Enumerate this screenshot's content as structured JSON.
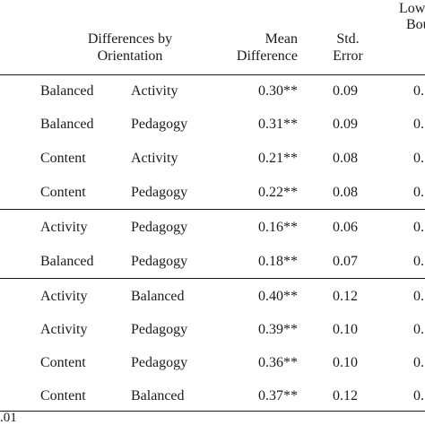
{
  "header": {
    "group_label_line1": "Differences by",
    "group_label_line2": "Orientation",
    "mean_line1": "Mean",
    "mean_line2": "Difference",
    "se_line1": "Std.",
    "se_line2": "Error",
    "lower_line1": "Low",
    "lower_line2": "Bou"
  },
  "rows": [
    {
      "a": "Balanced",
      "b": "Activity",
      "mean": "0.30**",
      "se": "0.09",
      "lb": "0."
    },
    {
      "a": "Balanced",
      "b": "Pedagogy",
      "mean": "0.31**",
      "se": "0.09",
      "lb": "0."
    },
    {
      "a": "Content",
      "b": "Activity",
      "mean": "0.21**",
      "se": "0.08",
      "lb": "0."
    },
    {
      "a": "Content",
      "b": "Pedagogy",
      "mean": "0.22**",
      "se": "0.08",
      "lb": "0."
    },
    {
      "a": "Activity",
      "b": "Pedagogy",
      "mean": "0.16**",
      "se": "0.06",
      "lb": "0."
    },
    {
      "a": "Balanced",
      "b": "Pedagogy",
      "mean": "0.18**",
      "se": "0.07",
      "lb": "0."
    },
    {
      "a": "Activity",
      "b": "Balanced",
      "mean": "0.40**",
      "se": "0.12",
      "lb": "0."
    },
    {
      "a": "Activity",
      "b": "Pedagogy",
      "mean": "0.39**",
      "se": "0.10",
      "lb": "0."
    },
    {
      "a": "Content",
      "b": "Pedagogy",
      "mean": "0.36**",
      "se": "0.10",
      "lb": "0."
    },
    {
      "a": "Content",
      "b": "Balanced",
      "mean": "0.37**",
      "se": "0.12",
      "lb": "0."
    }
  ],
  "footnote": ".01"
}
